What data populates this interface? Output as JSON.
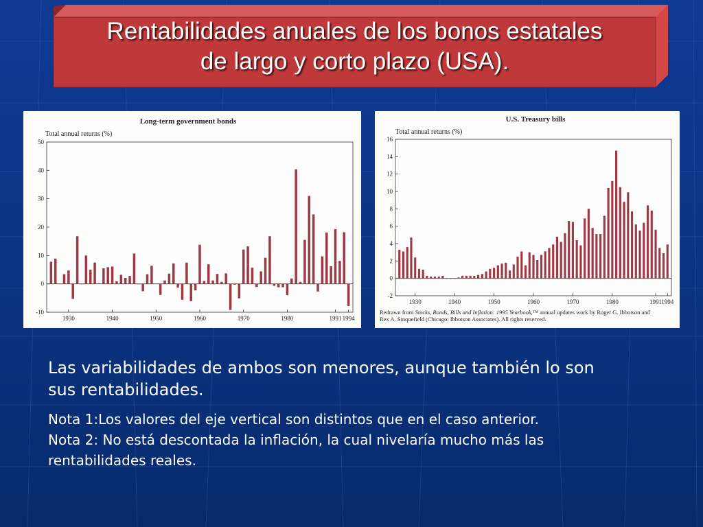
{
  "slide": {
    "title_line1": "Rentabilidades anuales de los bonos estatales",
    "title_line2": "de largo y corto plazo (USA).",
    "text_main": "Las variabilidades de ambos son menores, aunque también lo son sus rentabilidades.",
    "note1": "Nota 1:Los valores del eje vertical son distintos que en el caso anterior.",
    "note2": "Nota 2: No está descontada la inflación, la cual nivelaría mucho más las rentabilidades reales.",
    "colors": {
      "title_fill": "#c0393a",
      "bar": "#9e3a46",
      "background": "#0b3585"
    }
  },
  "chart_data": [
    {
      "type": "bar",
      "title": "Long-term government bonds",
      "ylabel": "Total annual returns (%)",
      "xlabel": "",
      "ylim": [
        -10,
        50
      ],
      "yticks": [
        -10,
        0,
        10,
        20,
        30,
        40,
        50
      ],
      "xticks": [
        1930,
        1940,
        1950,
        1960,
        1970,
        1980,
        1991,
        1994
      ],
      "xrange": [
        1925,
        1995
      ],
      "x": [
        1926,
        1927,
        1928,
        1929,
        1930,
        1931,
        1932,
        1933,
        1934,
        1935,
        1936,
        1937,
        1938,
        1939,
        1940,
        1941,
        1942,
        1943,
        1944,
        1945,
        1946,
        1947,
        1948,
        1949,
        1950,
        1951,
        1952,
        1953,
        1954,
        1955,
        1956,
        1957,
        1958,
        1959,
        1960,
        1961,
        1962,
        1963,
        1964,
        1965,
        1966,
        1967,
        1968,
        1969,
        1970,
        1971,
        1972,
        1973,
        1974,
        1975,
        1976,
        1977,
        1978,
        1979,
        1980,
        1981,
        1982,
        1983,
        1984,
        1985,
        1986,
        1987,
        1988,
        1989,
        1990,
        1991,
        1992,
        1993,
        1994
      ],
      "values": [
        7.8,
        8.9,
        0.1,
        3.4,
        4.7,
        -5.3,
        16.8,
        -0.1,
        10.0,
        5.0,
        7.5,
        0.2,
        5.5,
        5.9,
        6.1,
        0.9,
        3.2,
        2.1,
        2.8,
        10.7,
        -0.1,
        -2.6,
        3.4,
        6.4,
        0.1,
        -3.9,
        1.2,
        3.6,
        7.2,
        -1.3,
        -5.6,
        7.5,
        -6.1,
        -2.3,
        13.8,
        1.0,
        6.9,
        1.2,
        3.5,
        0.7,
        3.7,
        -9.2,
        -0.3,
        -5.1,
        12.1,
        13.2,
        5.7,
        -1.1,
        4.4,
        9.2,
        16.8,
        -0.7,
        -1.2,
        -1.2,
        -4.0,
        1.9,
        40.4,
        0.7,
        15.5,
        31.0,
        24.5,
        -2.7,
        9.7,
        18.1,
        6.2,
        19.3,
        8.1,
        18.2,
        -7.8
      ]
    },
    {
      "type": "bar",
      "title": "U.S. Treasury bills",
      "ylabel": "Total annual returns (%)",
      "xlabel": "",
      "ylim": [
        -2,
        16
      ],
      "yticks": [
        -2,
        0,
        2,
        4,
        6,
        8,
        10,
        12,
        14,
        16
      ],
      "xticks": [
        1930,
        1940,
        1950,
        1960,
        1970,
        1980,
        1991,
        1994
      ],
      "xrange": [
        1925,
        1995
      ],
      "x": [
        1926,
        1927,
        1928,
        1929,
        1930,
        1931,
        1932,
        1933,
        1934,
        1935,
        1936,
        1937,
        1938,
        1939,
        1940,
        1941,
        1942,
        1943,
        1944,
        1945,
        1946,
        1947,
        1948,
        1949,
        1950,
        1951,
        1952,
        1953,
        1954,
        1955,
        1956,
        1957,
        1958,
        1959,
        1960,
        1961,
        1962,
        1963,
        1964,
        1965,
        1966,
        1967,
        1968,
        1969,
        1970,
        1971,
        1972,
        1973,
        1974,
        1975,
        1976,
        1977,
        1978,
        1979,
        1980,
        1981,
        1982,
        1983,
        1984,
        1985,
        1986,
        1987,
        1988,
        1989,
        1990,
        1991,
        1992,
        1993,
        1994
      ],
      "values": [
        3.3,
        3.1,
        3.6,
        4.7,
        2.4,
        1.1,
        1.0,
        0.3,
        0.2,
        0.2,
        0.2,
        0.3,
        0.0,
        0.0,
        0.0,
        0.1,
        0.3,
        0.3,
        0.3,
        0.3,
        0.4,
        0.5,
        0.8,
        1.1,
        1.2,
        1.5,
        1.7,
        1.8,
        0.9,
        1.6,
        2.5,
        3.1,
        1.5,
        3.0,
        2.7,
        2.1,
        2.7,
        3.1,
        3.5,
        3.9,
        4.8,
        4.2,
        5.2,
        6.6,
        6.5,
        4.4,
        3.8,
        6.9,
        8.0,
        5.8,
        5.1,
        5.1,
        7.2,
        10.4,
        11.2,
        14.7,
        10.5,
        8.8,
        9.9,
        7.7,
        6.2,
        5.5,
        6.4,
        8.4,
        7.8,
        5.6,
        3.5,
        2.9,
        3.9
      ]
    }
  ],
  "credit": {
    "line1_prefix": "Redrawn from ",
    "line1_italic": "Stocks, Bonds, Bills and Inflation: 1995 Yearbook,",
    "line1_suffix": "™ annual updates work by Roger G. Ibbotson and",
    "line2": "Rex A. Sinquefield (Chicago: Ibbotson Associates). All rights reserved."
  }
}
